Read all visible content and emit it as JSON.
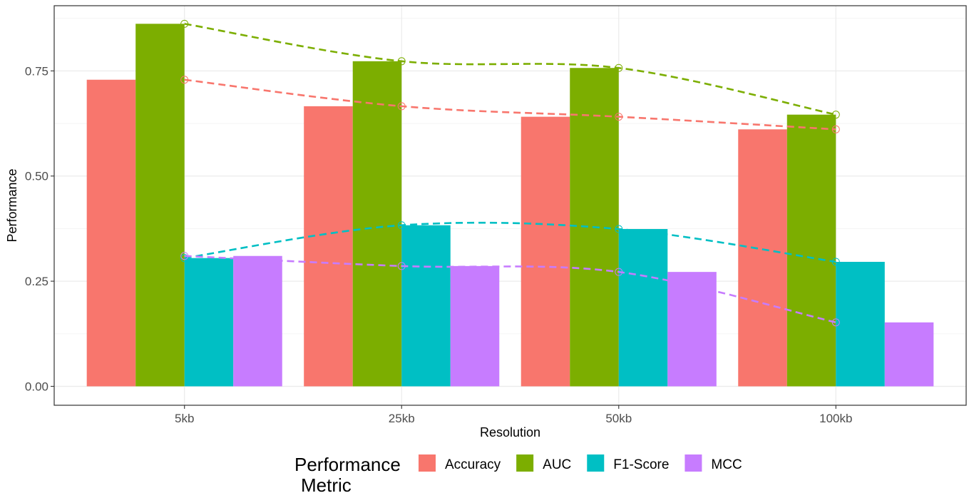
{
  "chart_data": {
    "type": "bar",
    "title": "",
    "xlabel": "Resolution",
    "ylabel": "Performance",
    "categories": [
      "5kb",
      "25kb",
      "50kb",
      "100kb"
    ],
    "ylim": [
      -0.045,
      0.905
    ],
    "yticks": [
      0.0,
      0.25,
      0.5,
      0.75
    ],
    "ytick_labels": [
      "0.00",
      "0.25",
      "0.50",
      "0.75"
    ],
    "grid": true,
    "legend": {
      "title_lines": [
        "Performance",
        "Metric"
      ],
      "position": "bottom"
    },
    "series": [
      {
        "name": "Accuracy",
        "color": "#F8766D",
        "values": [
          0.729,
          0.666,
          0.641,
          0.611
        ]
      },
      {
        "name": "AUC",
        "color": "#7CAE00",
        "values": [
          0.862,
          0.773,
          0.757,
          0.646
        ]
      },
      {
        "name": "F1-Score",
        "color": "#00BFC4",
        "values": [
          0.305,
          0.383,
          0.374,
          0.296
        ]
      },
      {
        "name": "MCC",
        "color": "#C77CFF",
        "values": [
          0.31,
          0.286,
          0.272,
          0.152
        ]
      }
    ],
    "trend_lines": {
      "style": "dashed smoothed line with open circle markers at each resolution",
      "series": [
        "Accuracy",
        "AUC",
        "F1-Score",
        "MCC"
      ]
    }
  }
}
